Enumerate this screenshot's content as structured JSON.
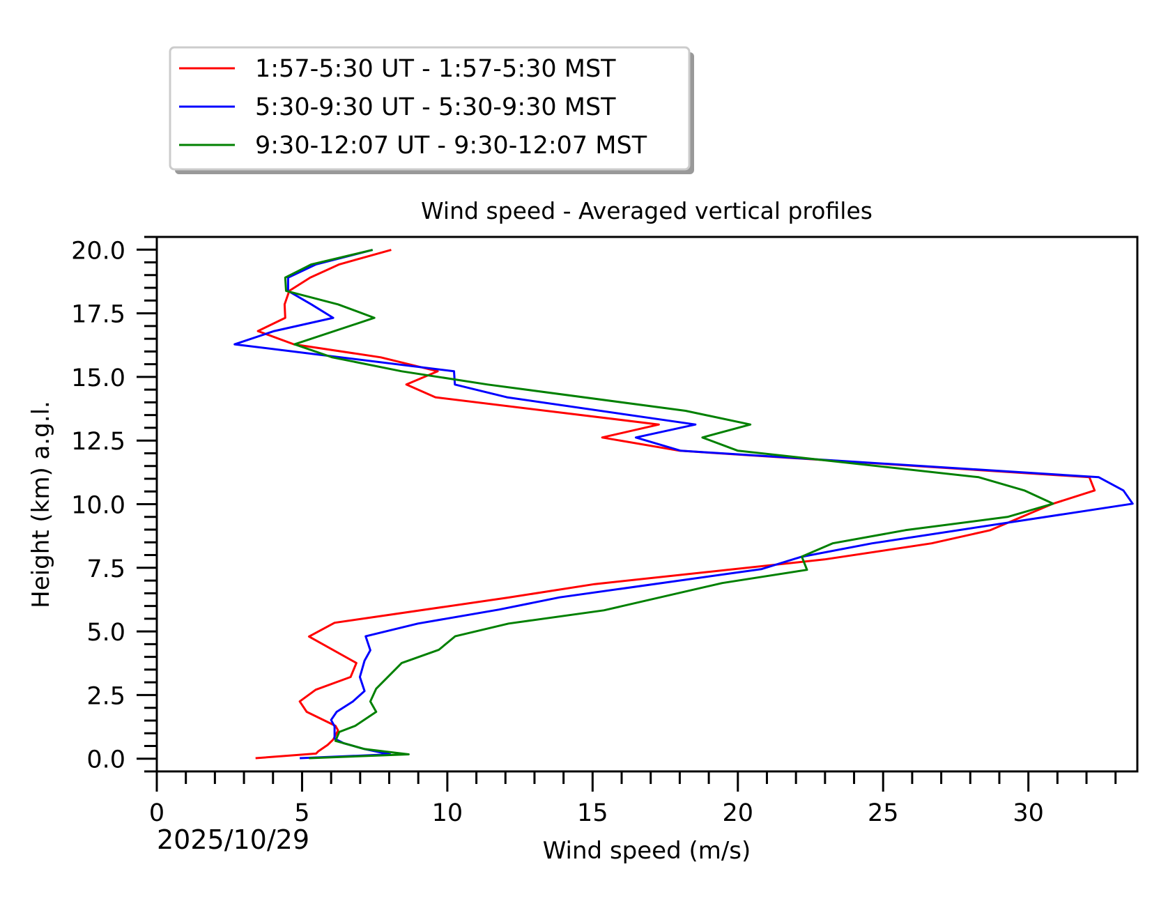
{
  "chart_data": {
    "type": "line",
    "title": "Wind speed - Averaged vertical profiles",
    "xlabel": "Wind speed (m/s)",
    "ylabel": "Height (km) a.g.l.",
    "date_label": "2025/10/29",
    "xlim": [
      0,
      33.75
    ],
    "ylim": [
      -0.5,
      20.5
    ],
    "x_ticks": [
      0,
      5,
      10,
      15,
      20,
      25,
      30
    ],
    "x_tick_labels": [
      "0",
      "5",
      "10",
      "15",
      "20",
      "25",
      "30"
    ],
    "x_minor_step": 1,
    "y_ticks": [
      0,
      2.5,
      5,
      7.5,
      10,
      12.5,
      15,
      17.5,
      20
    ],
    "y_tick_labels": [
      "0.0",
      "2.5",
      "5.0",
      "7.5",
      "10.0",
      "12.5",
      "15.0",
      "17.5",
      "20.0"
    ],
    "y_minor_step": 0.5,
    "grid": false,
    "legend_placement": "above plot, top-left, with shadow",
    "series": [
      {
        "name": "1:57-5:30 UT - 1:57-5:30 MST",
        "color": "#ff0000",
        "points": [
          [
            8.07,
            19.99
          ],
          [
            6.28,
            19.42
          ],
          [
            5.28,
            18.9
          ],
          [
            4.56,
            18.38
          ],
          [
            4.4,
            17.85
          ],
          [
            4.42,
            17.32
          ],
          [
            3.48,
            16.8
          ],
          [
            4.72,
            16.28
          ],
          [
            7.71,
            15.77
          ],
          [
            9.67,
            15.22
          ],
          [
            8.59,
            14.7
          ],
          [
            9.59,
            14.2
          ],
          [
            17.28,
            13.13
          ],
          [
            15.33,
            12.62
          ],
          [
            17.99,
            12.1
          ],
          [
            32.1,
            11.06
          ],
          [
            32.28,
            10.54
          ],
          [
            30.85,
            10.02
          ],
          [
            28.69,
            8.98
          ],
          [
            26.67,
            8.46
          ],
          [
            22.98,
            7.83
          ],
          [
            15.07,
            6.86
          ],
          [
            12.1,
            6.33
          ],
          [
            6.12,
            5.34
          ],
          [
            5.24,
            4.8
          ],
          [
            6.87,
            3.76
          ],
          [
            6.67,
            3.21
          ],
          [
            5.47,
            2.71
          ],
          [
            4.92,
            2.25
          ],
          [
            5.16,
            1.84
          ],
          [
            6.15,
            1.29
          ],
          [
            6.24,
            1.11
          ],
          [
            6.07,
            0.75
          ],
          [
            5.88,
            0.54
          ],
          [
            5.56,
            0.29
          ],
          [
            5.48,
            0.2
          ],
          [
            3.4,
            0.02
          ]
        ]
      },
      {
        "name": "5:30-9:30 UT - 5:30-9:30 MST",
        "color": "#0000ff",
        "points": [
          [
            7.43,
            19.99
          ],
          [
            5.48,
            19.42
          ],
          [
            4.52,
            18.9
          ],
          [
            4.52,
            18.38
          ],
          [
            5.32,
            17.85
          ],
          [
            6.07,
            17.32
          ],
          [
            4.04,
            16.8
          ],
          [
            2.68,
            16.28
          ],
          [
            10.23,
            15.22
          ],
          [
            10.26,
            14.7
          ],
          [
            12.05,
            14.2
          ],
          [
            18.54,
            13.13
          ],
          [
            16.49,
            12.62
          ],
          [
            18.03,
            12.1
          ],
          [
            32.42,
            11.06
          ],
          [
            33.27,
            10.54
          ],
          [
            33.59,
            10.02
          ],
          [
            24.62,
            8.46
          ],
          [
            22.18,
            7.93
          ],
          [
            20.82,
            7.45
          ],
          [
            13.87,
            6.34
          ],
          [
            11.79,
            5.86
          ],
          [
            8.99,
            5.31
          ],
          [
            7.19,
            4.81
          ],
          [
            7.35,
            4.26
          ],
          [
            7.15,
            3.85
          ],
          [
            6.99,
            3.21
          ],
          [
            7.15,
            2.66
          ],
          [
            6.75,
            2.25
          ],
          [
            6.19,
            1.84
          ],
          [
            6.0,
            1.52
          ],
          [
            6.12,
            1.27
          ],
          [
            6.12,
            0.79
          ],
          [
            6.43,
            0.61
          ],
          [
            7.15,
            0.38
          ],
          [
            8.03,
            0.17
          ],
          [
            4.92,
            0.02
          ]
        ]
      },
      {
        "name": "9:30-12:07 UT - 9:30-12:07 MST",
        "color": "#008000",
        "points": [
          [
            7.43,
            19.99
          ],
          [
            5.32,
            19.42
          ],
          [
            4.42,
            18.9
          ],
          [
            4.45,
            18.38
          ],
          [
            6.24,
            17.85
          ],
          [
            7.49,
            17.32
          ],
          [
            4.74,
            16.28
          ],
          [
            6.04,
            15.77
          ],
          [
            8.43,
            15.22
          ],
          [
            11.39,
            14.7
          ],
          [
            18.2,
            13.67
          ],
          [
            20.43,
            13.13
          ],
          [
            18.78,
            12.62
          ],
          [
            20.0,
            12.1
          ],
          [
            28.29,
            11.06
          ],
          [
            29.86,
            10.54
          ],
          [
            30.85,
            10.02
          ],
          [
            29.28,
            9.5
          ],
          [
            25.77,
            8.98
          ],
          [
            23.26,
            8.46
          ],
          [
            22.2,
            7.94
          ],
          [
            22.38,
            7.42
          ],
          [
            19.46,
            6.9
          ],
          [
            15.39,
            5.83
          ],
          [
            12.11,
            5.31
          ],
          [
            10.27,
            4.81
          ],
          [
            9.71,
            4.28
          ],
          [
            8.43,
            3.76
          ],
          [
            7.55,
            2.75
          ],
          [
            7.35,
            2.25
          ],
          [
            7.55,
            1.84
          ],
          [
            6.83,
            1.29
          ],
          [
            6.28,
            1.05
          ],
          [
            6.15,
            0.7
          ],
          [
            7.15,
            0.38
          ],
          [
            8.67,
            0.17
          ],
          [
            5.24,
            0.02
          ]
        ]
      }
    ]
  }
}
